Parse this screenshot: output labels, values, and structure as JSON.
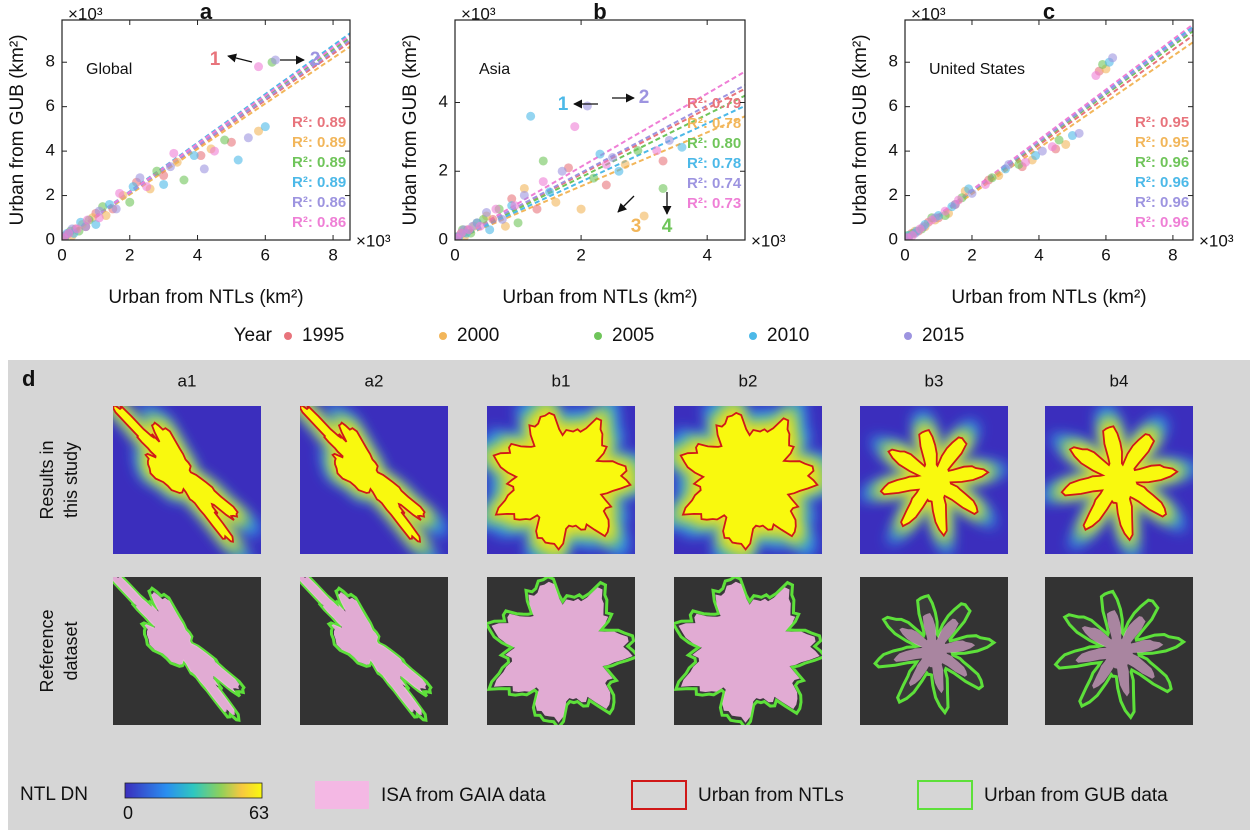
{
  "chart_data": [
    {
      "type": "scatter",
      "panel": "a",
      "region": "Global",
      "x_label": "Urban from NTLs (km²)",
      "y_label": "Urban from GUB (km²)",
      "x_multiplier": "×10³",
      "y_multiplier": "×10³",
      "xlim": [
        0,
        8.5
      ],
      "ylim": [
        0,
        9.9
      ],
      "xticks": [
        0,
        2,
        4,
        6,
        8
      ],
      "yticks": [
        0,
        2,
        4,
        6,
        8
      ],
      "annotations": [
        "1",
        "2"
      ],
      "series": [
        {
          "name": "1995",
          "color": "#e8747c",
          "r2_label": "R²: 0.89",
          "x": [
            0.05,
            0.2,
            0.4,
            0.7,
            1.0,
            1.5,
            2.2,
            3.0,
            4.1,
            5.0
          ],
          "y": [
            0.1,
            0.3,
            0.5,
            0.6,
            1.2,
            1.4,
            2.6,
            2.9,
            3.8,
            4.4
          ],
          "fit_x": [
            0,
            8.5
          ],
          "fit_y": [
            0,
            8.9
          ]
        },
        {
          "name": "2000",
          "color": "#f2b65a",
          "r2_label": "R²: 0.89",
          "x": [
            0.1,
            0.3,
            0.6,
            0.9,
            1.3,
            1.8,
            2.6,
            3.4,
            4.4,
            5.8
          ],
          "y": [
            0.2,
            0.2,
            0.7,
            1.0,
            1.1,
            2.0,
            2.3,
            3.5,
            4.1,
            4.9
          ],
          "fit_x": [
            0,
            8.5
          ],
          "fit_y": [
            0,
            8.7
          ]
        },
        {
          "name": "2005",
          "color": "#6fc55a",
          "r2_label": "R²: 0.89",
          "x": [
            0.08,
            0.25,
            0.5,
            0.8,
            1.2,
            2.0,
            2.8,
            3.6,
            4.8,
            6.2
          ],
          "y": [
            0.1,
            0.4,
            0.4,
            0.9,
            1.5,
            1.7,
            3.1,
            2.7,
            4.5,
            8.0
          ],
          "fit_x": [
            0,
            8.5
          ],
          "fit_y": [
            0,
            9.1
          ]
        },
        {
          "name": "2010",
          "color": "#4cb9e8",
          "r2_label": "R²: 0.89",
          "x": [
            0.15,
            0.35,
            0.55,
            1.0,
            1.4,
            2.1,
            3.0,
            3.9,
            5.2,
            6.0
          ],
          "y": [
            0.3,
            0.3,
            0.8,
            0.7,
            1.6,
            2.4,
            2.5,
            3.8,
            3.6,
            5.1
          ],
          "fit_x": [
            0,
            8.5
          ],
          "fit_y": [
            0,
            9.3
          ]
        },
        {
          "name": "2015",
          "color": "#9d94e0",
          "r2_label": "R²: 0.86",
          "x": [
            0.1,
            0.3,
            0.7,
            1.1,
            1.6,
            2.3,
            3.2,
            4.2,
            5.5,
            6.3
          ],
          "y": [
            0.2,
            0.5,
            0.6,
            1.3,
            1.4,
            2.8,
            3.3,
            3.2,
            4.6,
            8.1
          ],
          "fit_x": [
            0,
            8.5
          ],
          "fit_y": [
            0,
            9.0
          ]
        },
        {
          "color": "#ef7fd6",
          "r2_label": "R²: 0.86",
          "x": [
            0.05,
            0.2,
            0.45,
            0.75,
            1.1,
            1.7,
            2.5,
            3.3,
            4.5,
            5.8
          ],
          "y": [
            0.1,
            0.3,
            0.5,
            0.9,
            1.0,
            2.1,
            2.4,
            3.9,
            4.0,
            7.8
          ],
          "fit_x": [
            0,
            8.5
          ],
          "fit_y": [
            0,
            9.2
          ]
        }
      ]
    },
    {
      "type": "scatter",
      "panel": "b",
      "region": "Asia",
      "x_label": "Urban from NTLs (km²)",
      "y_label": "Urban from GUB (km²)",
      "x_multiplier": "×10³",
      "y_multiplier": "×10³",
      "xlim": [
        0,
        4.6
      ],
      "ylim": [
        0,
        6.4
      ],
      "xticks": [
        0,
        2,
        4
      ],
      "yticks": [
        0,
        2,
        4
      ],
      "annotations": [
        "1",
        "2",
        "3",
        "4"
      ],
      "series": [
        {
          "name": "1995",
          "color": "#e8747c",
          "r2_label": "R²: 0.79",
          "x": [
            0.03,
            0.1,
            0.2,
            0.35,
            0.6,
            0.9,
            1.3,
            1.8,
            2.4,
            3.3
          ],
          "y": [
            0.05,
            0.2,
            0.3,
            0.5,
            0.6,
            1.2,
            0.9,
            2.1,
            1.6,
            2.3
          ],
          "fit_x": [
            0,
            4.6
          ],
          "fit_y": [
            0,
            4.4
          ]
        },
        {
          "name": "2000",
          "color": "#f2b65a",
          "r2_label": "R²: 0.78",
          "x": [
            0.05,
            0.15,
            0.3,
            0.5,
            0.8,
            1.1,
            1.6,
            2.0,
            2.7,
            3.0
          ],
          "y": [
            0.1,
            0.1,
            0.4,
            0.7,
            0.4,
            1.5,
            1.1,
            0.9,
            2.2,
            0.7
          ],
          "fit_x": [
            0,
            4.6
          ],
          "fit_y": [
            0,
            3.6
          ]
        },
        {
          "name": "2005",
          "color": "#6fc55a",
          "r2_label": "R²: 0.80",
          "x": [
            0.04,
            0.12,
            0.25,
            0.45,
            0.7,
            1.0,
            1.4,
            2.2,
            2.9,
            3.3
          ],
          "y": [
            0.1,
            0.3,
            0.2,
            0.6,
            0.9,
            0.5,
            2.3,
            1.8,
            2.6,
            1.5
          ],
          "fit_x": [
            0,
            4.6
          ],
          "fit_y": [
            0,
            4.2
          ]
        },
        {
          "name": "2010",
          "color": "#4cb9e8",
          "r2_label": "R²: 0.78",
          "x": [
            0.06,
            0.18,
            0.35,
            0.55,
            0.9,
            1.2,
            1.5,
            2.3,
            2.6,
            3.6
          ],
          "y": [
            0.1,
            0.2,
            0.5,
            0.3,
            1.0,
            3.6,
            1.4,
            2.5,
            2.0,
            2.7
          ],
          "fit_x": [
            0,
            4.6
          ],
          "fit_y": [
            0,
            3.9
          ]
        },
        {
          "name": "2015",
          "color": "#9d94e0",
          "r2_label": "R²: 0.74",
          "x": [
            0.05,
            0.14,
            0.28,
            0.5,
            0.75,
            1.1,
            1.7,
            2.1,
            2.5,
            3.4
          ],
          "y": [
            0.1,
            0.3,
            0.4,
            0.8,
            0.6,
            1.3,
            2.0,
            3.9,
            2.4,
            2.9
          ],
          "fit_x": [
            0,
            4.6
          ],
          "fit_y": [
            0,
            4.5
          ]
        },
        {
          "color": "#ef7fd6",
          "r2_label": "R²: 0.73",
          "x": [
            0.03,
            0.1,
            0.22,
            0.4,
            0.65,
            0.95,
            1.4,
            1.9,
            2.4,
            3.2
          ],
          "y": [
            0.05,
            0.2,
            0.3,
            0.4,
            0.9,
            1.0,
            1.7,
            3.3,
            2.2,
            2.6
          ],
          "fit_x": [
            0,
            4.6
          ],
          "fit_y": [
            0,
            4.9
          ]
        }
      ]
    },
    {
      "type": "scatter",
      "panel": "c",
      "region": "United States",
      "x_label": "Urban from NTLs (km²)",
      "y_label": "Urban from GUB (km²)",
      "x_multiplier": "×10³",
      "y_multiplier": "×10³",
      "xlim": [
        0,
        8.6
      ],
      "ylim": [
        0,
        9.9
      ],
      "xticks": [
        0,
        2,
        4,
        6,
        8
      ],
      "yticks": [
        0,
        2,
        4,
        6,
        8
      ],
      "annotations": [],
      "series": [
        {
          "name": "1995",
          "color": "#e8747c",
          "r2_label": "R²: 0.95",
          "x": [
            0.05,
            0.2,
            0.4,
            0.7,
            1.0,
            1.5,
            2.5,
            3.5,
            4.5,
            5.8
          ],
          "y": [
            0.1,
            0.3,
            0.4,
            0.8,
            1.0,
            1.6,
            2.7,
            3.3,
            4.1,
            7.6
          ],
          "fit_x": [
            0,
            8.6
          ],
          "fit_y": [
            0,
            9.2
          ]
        },
        {
          "name": "2000",
          "color": "#f2b65a",
          "r2_label": "R²: 0.95",
          "x": [
            0.1,
            0.3,
            0.6,
            0.9,
            1.3,
            1.8,
            2.8,
            3.8,
            4.8,
            6.0
          ],
          "y": [
            0.1,
            0.4,
            0.6,
            0.9,
            1.2,
            2.2,
            2.9,
            3.6,
            4.3,
            7.7
          ],
          "fit_x": [
            0,
            8.6
          ],
          "fit_y": [
            0,
            8.9
          ]
        },
        {
          "name": "2005",
          "color": "#6fc55a",
          "r2_label": "R²: 0.96",
          "x": [
            0.08,
            0.25,
            0.5,
            0.8,
            1.2,
            1.7,
            2.6,
            3.4,
            4.6,
            5.9
          ],
          "y": [
            0.2,
            0.3,
            0.5,
            1.0,
            1.1,
            1.9,
            2.8,
            3.4,
            4.5,
            7.9
          ],
          "fit_x": [
            0,
            8.6
          ],
          "fit_y": [
            0,
            9.4
          ]
        },
        {
          "name": "2010",
          "color": "#4cb9e8",
          "r2_label": "R²: 0.96",
          "x": [
            0.12,
            0.35,
            0.6,
            1.0,
            1.4,
            1.9,
            3.0,
            3.9,
            5.0,
            6.1
          ],
          "y": [
            0.2,
            0.4,
            0.7,
            1.1,
            1.5,
            2.3,
            3.2,
            3.8,
            4.7,
            8.0
          ],
          "fit_x": [
            0,
            8.6
          ],
          "fit_y": [
            0,
            9.6
          ]
        },
        {
          "name": "2015",
          "color": "#9d94e0",
          "r2_label": "R²: 0.96",
          "x": [
            0.1,
            0.3,
            0.55,
            0.9,
            1.5,
            2.0,
            3.1,
            4.1,
            5.2,
            6.2
          ],
          "y": [
            0.1,
            0.3,
            0.6,
            1.0,
            1.6,
            2.1,
            3.4,
            4.0,
            4.8,
            8.2
          ],
          "fit_x": [
            0,
            8.6
          ],
          "fit_y": [
            0,
            9.5
          ]
        },
        {
          "color": "#ef7fd6",
          "r2_label": "R²: 0.96",
          "x": [
            0.06,
            0.22,
            0.45,
            0.8,
            1.2,
            1.6,
            2.4,
            3.6,
            4.4,
            5.7
          ],
          "y": [
            0.1,
            0.2,
            0.5,
            0.9,
            1.3,
            1.8,
            2.5,
            3.5,
            4.2,
            7.4
          ],
          "fit_x": [
            0,
            8.6
          ],
          "fit_y": [
            0,
            9.7
          ]
        }
      ]
    }
  ],
  "legend_title": "Year",
  "panel_d": {
    "label": "d",
    "columns": [
      "a1",
      "a2",
      "b1",
      "b2",
      "b3",
      "b4"
    ],
    "rows": [
      [
        "Results in",
        "this study"
      ],
      [
        "Reference",
        "dataset"
      ]
    ],
    "colorbar_title": "NTL DN",
    "colorbar_min": 0,
    "colorbar_max": 63,
    "items": [
      "ISA from GAIA data",
      "Urban from NTLs",
      "Urban from GUB data"
    ]
  }
}
